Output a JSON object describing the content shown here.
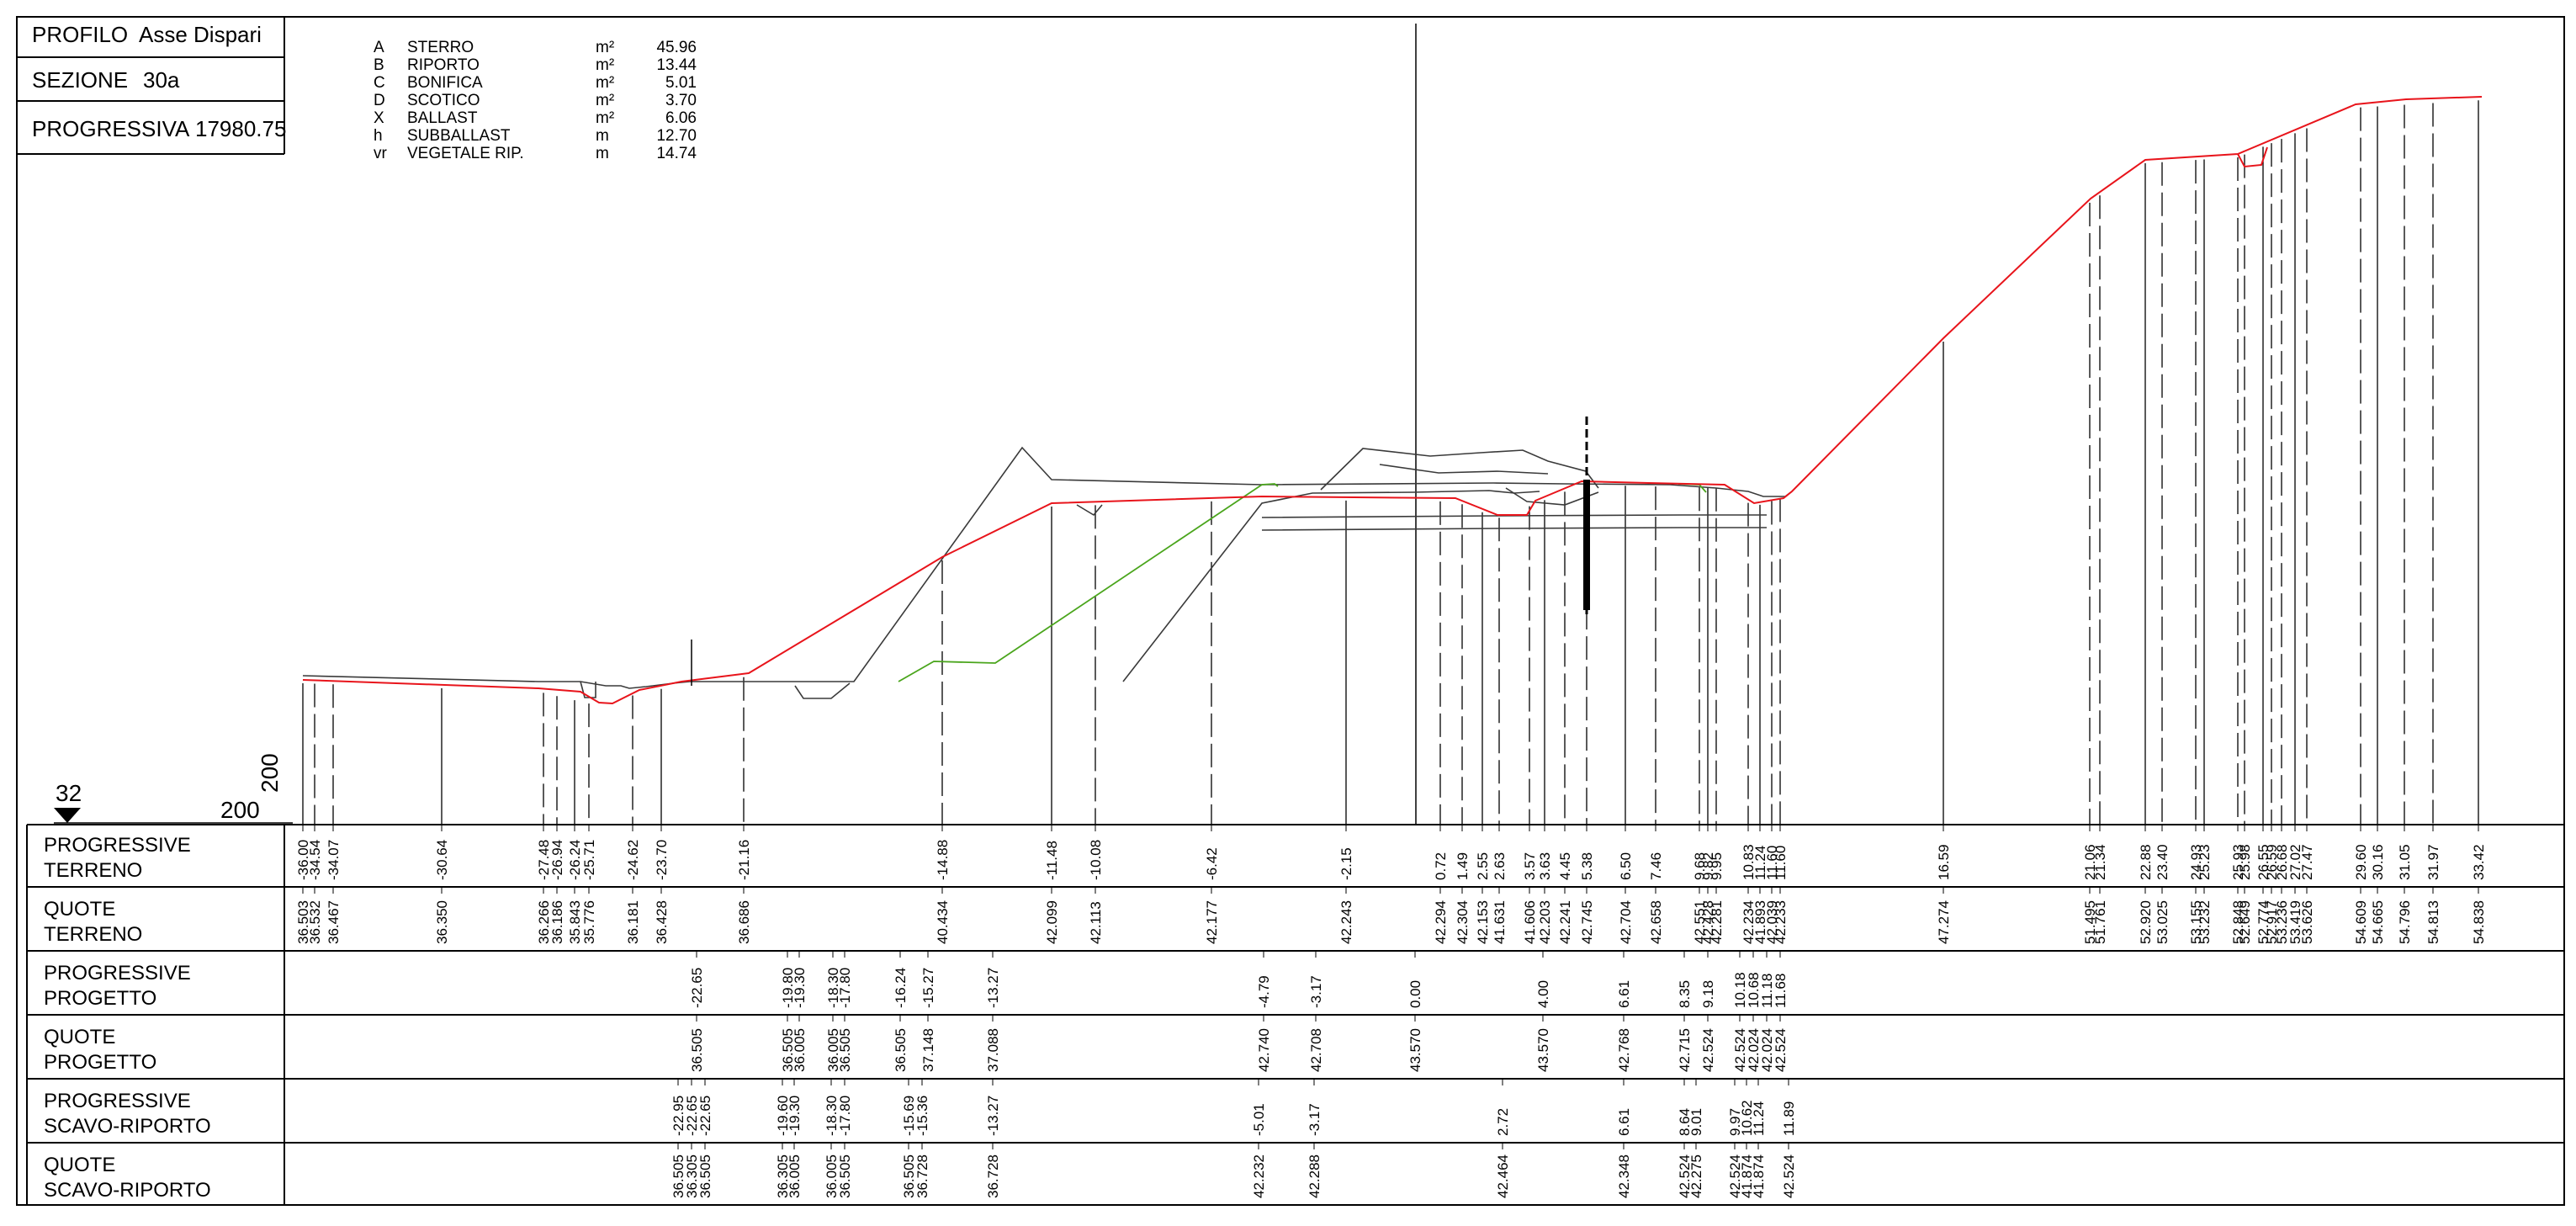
{
  "header": {
    "profilo_label": "PROFILO",
    "profilo_value": "Asse Dispari",
    "sezione_label": "SEZIONE",
    "sezione_value": "30a",
    "progressiva_label": "PROGRESSIVA",
    "progressiva_value": "17980.75"
  },
  "quantities": [
    {
      "code": "A",
      "name": "STERRO",
      "unit": "m²",
      "value": "45.96"
    },
    {
      "code": "B",
      "name": "RIPORTO",
      "unit": "m²",
      "value": "13.44"
    },
    {
      "code": "C",
      "name": "BONIFICA",
      "unit": "m²",
      "value": "5.01"
    },
    {
      "code": "D",
      "name": "SCOTICO",
      "unit": "m²",
      "value": "3.70"
    },
    {
      "code": "X",
      "name": "BALLAST",
      "unit": "m²",
      "value": "6.06"
    },
    {
      "code": "h",
      "name": "SUBBALLAST",
      "unit": "m",
      "value": "12.70"
    },
    {
      "code": "vr",
      "name": "VEGETALE RIP.",
      "unit": "m",
      "value": "14.74"
    }
  ],
  "reference": {
    "level_left": "200",
    "level_vertical": "200",
    "marker": "32"
  },
  "colors": {
    "terrain": "#e8141b",
    "design": "#3a3a3a",
    "embankment": "#4aa51c",
    "axis": "#000000"
  },
  "rows": [
    {
      "label1": "PROGRESSIVE",
      "label2": "TERRENO"
    },
    {
      "label1": "QUOTE",
      "label2": "TERRENO"
    },
    {
      "label1": "PROGRESSIVE",
      "label2": "PROGETTO"
    },
    {
      "label1": "QUOTE",
      "label2": "PROGETTO"
    },
    {
      "label1": "PROGRESSIVE",
      "label2": "SCAVO-RIPORTO"
    },
    {
      "label1": "QUOTE",
      "label2": "SCAVO-RIPORTO"
    }
  ],
  "terreno_progressive": [
    "-36.00",
    "-34.54",
    "-34.07",
    "-30.64",
    "-27.48",
    "-26.94",
    "-26.24",
    "-25.71",
    "-24.62",
    "-23.70",
    "-21.16",
    "-14.88",
    "-11.48",
    "-10.08",
    "-6.42",
    "-2.15",
    "0.72",
    "1.49",
    "2.55",
    "2.63",
    "3.57",
    "3.63",
    "4.45",
    "5.38",
    "6.50",
    "7.46",
    "9.68",
    "9.82",
    "9.95",
    "10.83",
    "11.24",
    "11.60",
    "11.60",
    "16.59",
    "21.06",
    "21.34",
    "22.88",
    "23.40",
    "24.93",
    "25.23",
    "25.93",
    "25.98",
    "26.55",
    "26.59",
    "26.68",
    "27.02",
    "27.47",
    "29.60",
    "30.16",
    "31.05",
    "31.97",
    "33.42"
  ],
  "terreno_quote": [
    "36.503",
    "36.532",
    "36.467",
    "36.350",
    "36.266",
    "36.186",
    "35.843",
    "35.776",
    "36.181",
    "36.428",
    "36.686",
    "40.434",
    "42.099",
    "42.113",
    "42.177",
    "42.243",
    "42.294",
    "42.304",
    "42.153",
    "41.631",
    "41.606",
    "42.203",
    "42.241",
    "42.745",
    "42.704",
    "42.658",
    "42.551",
    "42.428",
    "42.281",
    "42.234",
    "41.893",
    "42.039",
    "42.233",
    "47.274",
    "51.495",
    "51.761",
    "52.920",
    "53.025",
    "53.155",
    "53.232",
    "52.848",
    "52.649",
    "52.774",
    "52.917",
    "53.236",
    "53.419",
    "53.626",
    "54.609",
    "54.665",
    "54.796",
    "54.813",
    "54.838"
  ],
  "progetto_progressive": [
    "-22.65",
    "-19.80",
    "-19.30",
    "-18.30",
    "-17.80",
    "-16.24",
    "-15.27",
    "-13.27",
    "-4.79",
    "-3.17",
    "0.00",
    "4.00",
    "6.61",
    "8.35",
    "9.18",
    "10.18",
    "10.68",
    "11.18",
    "11.68"
  ],
  "progetto_quote": [
    "36.505",
    "36.505",
    "36.005",
    "36.005",
    "36.505",
    "36.505",
    "37.148",
    "37.088",
    "42.740",
    "42.708",
    "43.570",
    "43.570",
    "42.768",
    "42.715",
    "42.524",
    "42.524",
    "42.024",
    "42.024",
    "42.524"
  ],
  "scavo_progressive": [
    "-22.95",
    "-22.65",
    "-22.65",
    "-19.60",
    "-19.30",
    "-18.30",
    "-17.80",
    "-15.69",
    "-15.36",
    "-13.27",
    "-5.01",
    "-3.17",
    "2.72",
    "6.61",
    "8.64",
    "9.01",
    "9.97",
    "10.62",
    "11.24",
    "11.89"
  ],
  "scavo_quote": [
    "36.505",
    "36.305",
    "36.505",
    "36.305",
    "36.005",
    "36.005",
    "36.505",
    "36.505",
    "36.728",
    "36.728",
    "42.232",
    "42.288",
    "42.464",
    "42.348",
    "42.524",
    "42.275",
    "42.524",
    "41.874",
    "41.874",
    "42.524"
  ]
}
